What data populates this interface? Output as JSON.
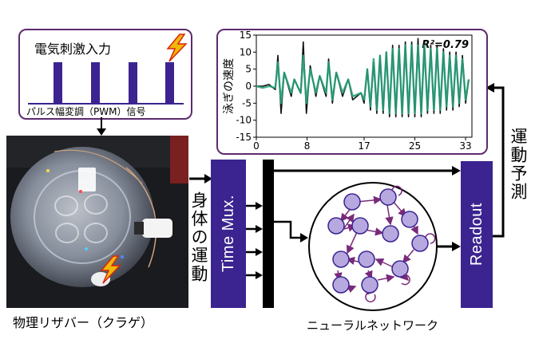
{
  "stimulus_panel": {
    "title": "電気刺激入力",
    "caption": "パルス幅変調（PWM）信号",
    "pulse_count": 4
  },
  "photo_label": "物理リザバー（クラゲ）",
  "body_motion_label": "身体の運動",
  "time_mux_label": "Time Mux.",
  "readout_label": "Readout",
  "network_label": "ニューラルネットワーク",
  "prediction_label": "運動予測",
  "colors": {
    "purple": "#3b2490",
    "node_fill": "#b7a8e0",
    "edge": "#7a2a7a",
    "measured": "#111111",
    "predicted": "#2aa07a",
    "lightning": "#f2b70a"
  },
  "icons": [
    "lightning-bolt-icon",
    "lightning-bolt-icon",
    "self-loop-arrow-icon"
  ],
  "chart_data": {
    "type": "line",
    "ylabel": "泳ぎの速度",
    "annotation": "R²=0.79",
    "xticks": [
      0,
      8,
      17,
      25,
      33
    ],
    "yticks": [
      -15,
      -10,
      -5,
      0,
      5,
      10,
      15
    ],
    "xlim": [
      0,
      34
    ],
    "ylim": [
      -15,
      15
    ],
    "series": [
      {
        "name": "measured",
        "x": [
          0,
          1,
          2,
          3,
          3.4,
          3.9,
          4.4,
          5.5,
          6,
          7,
          7.4,
          7.9,
          8.5,
          9.4,
          10,
          11,
          11.4,
          12,
          12.6,
          13.6,
          14.5,
          15.2,
          16.5,
          17,
          17.5,
          18,
          18.5,
          19,
          19.5,
          20,
          20.5,
          21,
          21.5,
          22,
          22.5,
          23,
          23.5,
          24,
          24.5,
          25,
          25.5,
          26,
          26.5,
          27,
          27.5,
          28,
          28.5,
          29,
          29.5,
          30,
          30.5,
          31,
          31.5,
          32,
          32.5,
          33,
          33.5
        ],
        "y": [
          0,
          0,
          0.5,
          -1,
          9,
          -8,
          4,
          -3,
          2,
          -2,
          13,
          -8,
          6,
          -3,
          3,
          -3,
          8,
          -5,
          4,
          -3,
          2,
          -4,
          -2,
          -5,
          5,
          -7,
          7,
          -8,
          9,
          -8,
          10,
          -9,
          12,
          -9,
          12,
          -9,
          13,
          -9,
          13,
          -9,
          14,
          -9,
          13,
          -8,
          12,
          -8,
          12,
          -8,
          11,
          -7,
          10,
          -7,
          10,
          -6,
          9,
          -5,
          2
        ]
      },
      {
        "name": "predicted",
        "x": [
          0,
          1,
          2,
          3,
          3.4,
          3.9,
          4.4,
          5.5,
          6,
          7,
          7.4,
          7.9,
          8.5,
          9.4,
          10,
          11,
          11.4,
          12,
          12.6,
          13.6,
          14.5,
          15.2,
          16.5,
          17,
          17.5,
          18,
          18.5,
          19,
          19.5,
          20,
          20.5,
          21,
          21.5,
          22,
          22.5,
          23,
          23.5,
          24,
          24.5,
          25,
          25.5,
          26,
          26.5,
          27,
          27.5,
          28,
          28.5,
          29,
          29.5,
          30,
          30.5,
          31,
          31.5,
          32,
          32.5,
          33,
          33.5
        ],
        "y": [
          0,
          -0.5,
          0,
          -0.5,
          7,
          -5,
          4,
          -2,
          2,
          -2,
          9,
          -5,
          5,
          -2,
          3,
          -2,
          7,
          -4,
          4,
          -2,
          2,
          -3,
          -2,
          -4,
          5,
          -6,
          8,
          -7,
          9,
          -7,
          10,
          -8,
          11,
          -8,
          11,
          -8,
          12,
          -8,
          12,
          -8,
          12,
          -8,
          12,
          -7,
          11,
          -7,
          11,
          -7,
          10,
          -6,
          9,
          -6,
          9,
          -5,
          8,
          -4,
          2
        ]
      }
    ]
  }
}
